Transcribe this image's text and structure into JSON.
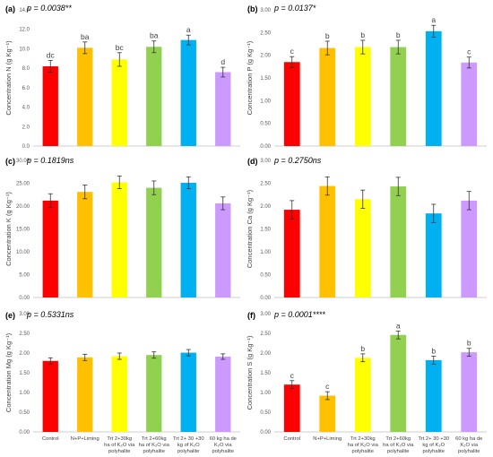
{
  "categories": [
    [
      "Control"
    ],
    [
      "N+P+Liming"
    ],
    [
      "Trt 2+30kg",
      "ha of K₂O via",
      "polyhalite"
    ],
    [
      "Trt 2+60kg",
      "ha of K₂O via",
      "polyhalite"
    ],
    [
      "Trt 2+ 30 +30",
      "kg of K₂O",
      "polyhalite"
    ],
    [
      "60 kg ha de",
      "K₂O via",
      "polyhalite"
    ]
  ],
  "colors": [
    "#ff0000",
    "#ffc000",
    "#ffff00",
    "#92d050",
    "#00b0f0",
    "#cc99ff"
  ],
  "chart_data": [
    {
      "type": "bar",
      "panel_label": "(a)",
      "p_value": "p = 0.0038**",
      "ylabel": "Concentration N (g Kg⁻¹)",
      "ylim": [
        0,
        14
      ],
      "yticks": [
        "0.0",
        "2.0",
        "4.0",
        "6.0",
        "8.0",
        "10.0",
        "12.0",
        "14.0"
      ],
      "values": [
        8.2,
        10.1,
        8.9,
        10.2,
        10.9,
        7.6
      ],
      "errors": [
        0.6,
        0.6,
        0.7,
        0.6,
        0.5,
        0.5
      ],
      "letters": [
        "dc",
        "ba",
        "bc",
        "ba",
        "a",
        "d"
      ]
    },
    {
      "type": "bar",
      "panel_label": "(b)",
      "p_value": "p = 0.0137*",
      "ylabel": "Concentration P (g Kg⁻¹)",
      "ylim": [
        0,
        3
      ],
      "yticks": [
        "0.00",
        "0.50",
        "1.00",
        "1.50",
        "2.00",
        "2.50",
        "3.00"
      ],
      "values": [
        1.85,
        2.16,
        2.18,
        2.18,
        2.53,
        1.84
      ],
      "errors": [
        0.12,
        0.15,
        0.15,
        0.15,
        0.13,
        0.12
      ],
      "letters": [
        "c",
        "b",
        "b",
        "b",
        "a",
        "c"
      ]
    },
    {
      "type": "bar",
      "panel_label": "(c)",
      "p_value": "p = 0.1819ns",
      "ylabel": "Concentration K (g Kg⁻¹)",
      "ylim": [
        0,
        30
      ],
      "yticks": [
        "0.00",
        "5.00",
        "10.00",
        "15.00",
        "20.00",
        "25.00",
        "30.00"
      ],
      "values": [
        21.2,
        23.1,
        25.2,
        24.0,
        25.1,
        20.6
      ],
      "errors": [
        1.5,
        1.5,
        1.4,
        1.5,
        1.3,
        1.4
      ],
      "letters": [
        "",
        "",
        "",
        "",
        "",
        ""
      ]
    },
    {
      "type": "bar",
      "panel_label": "(d)",
      "p_value": "p = 0.2750ns",
      "ylabel": "Concentration Ca (g Kg⁻¹)",
      "ylim": [
        0,
        3
      ],
      "yticks": [
        "0.00",
        "0.50",
        "1.00",
        "1.50",
        "2.00",
        "2.50",
        "3.00"
      ],
      "values": [
        1.92,
        2.44,
        2.15,
        2.43,
        1.84,
        2.12
      ],
      "errors": [
        0.2,
        0.2,
        0.2,
        0.2,
        0.2,
        0.2
      ],
      "letters": [
        "",
        "",
        "",
        "",
        "",
        ""
      ]
    },
    {
      "type": "bar",
      "panel_label": "(e)",
      "p_value": "p = 0.5331ns",
      "ylabel": "Concentration Mg (g Kg⁻¹)",
      "ylim": [
        0,
        3
      ],
      "yticks": [
        "0.00",
        "0.50",
        "1.00",
        "1.50",
        "2.00",
        "2.50",
        "3.00"
      ],
      "values": [
        1.8,
        1.89,
        1.92,
        1.95,
        2.01,
        1.91
      ],
      "errors": [
        0.08,
        0.08,
        0.08,
        0.08,
        0.08,
        0.07
      ],
      "letters": [
        "",
        "",
        "",
        "",
        "",
        ""
      ]
    },
    {
      "type": "bar",
      "panel_label": "(f)",
      "p_value": "p = 0.0001****",
      "ylabel": "Concentration S (g Kg⁻¹)",
      "ylim": [
        0,
        3
      ],
      "yticks": [
        "0.00",
        "0.50",
        "1.00",
        "1.50",
        "2.00",
        "2.50",
        "3.00"
      ],
      "values": [
        1.2,
        0.92,
        1.88,
        2.46,
        1.82,
        2.02
      ],
      "errors": [
        0.1,
        0.1,
        0.1,
        0.1,
        0.1,
        0.1
      ],
      "letters": [
        "c",
        "c",
        "b",
        "a",
        "b",
        "b"
      ]
    }
  ]
}
